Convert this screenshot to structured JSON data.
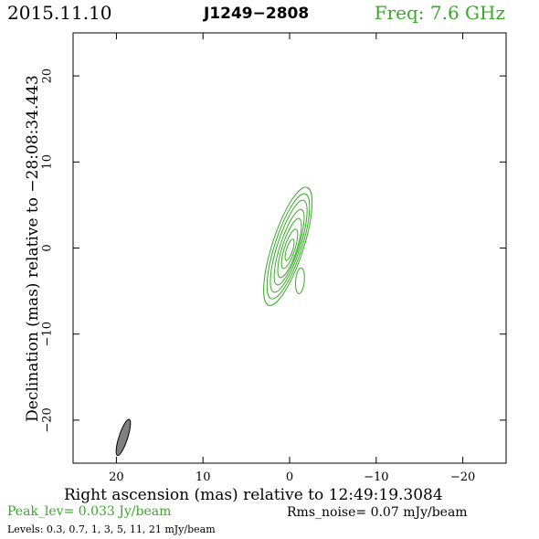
{
  "header": {
    "date": "2015.11.10",
    "source": "J1249−2808",
    "frequency": "Freq: 7.6 GHz"
  },
  "footer": {
    "peak": "Peak_lev=  0.033 Jy/beam",
    "rms": "Rms_noise= 0.07 mJy/beam",
    "levels": "Levels: 0.3, 0.7,    1,    3,    5,   11,   21 mJy/beam"
  },
  "chart_data": {
    "type": "contour",
    "title": "J1249−2808",
    "xlabel": "Right ascension (mas) relative to 12:49:19.3084",
    "ylabel": "Declination (mas) relative to −28:08:34.443",
    "xlim": [
      25,
      -25
    ],
    "ylim": [
      -25,
      25
    ],
    "xticks": [
      20,
      10,
      0,
      -10,
      -20
    ],
    "xtick_labels": [
      "20",
      "10",
      "0",
      "−10",
      "−20"
    ],
    "yticks": [
      -20,
      -10,
      0,
      10,
      20
    ],
    "ytick_labels": [
      "−20",
      "−10",
      "0",
      "10",
      "20"
    ],
    "contour_color": "#3aa82a",
    "beam_color": "#808080",
    "contour_levels_mJy": [
      0.3,
      0.7,
      1,
      3,
      5,
      11,
      21
    ],
    "contours": [
      {
        "level": 0.3,
        "cx": 0.2,
        "cy": 0.2,
        "a": 7.2,
        "b": 1.8,
        "pa": 18
      },
      {
        "level": 0.7,
        "cx": 0.15,
        "cy": 0.2,
        "a": 6.4,
        "b": 1.55,
        "pa": 18
      },
      {
        "level": 1,
        "cx": 0.1,
        "cy": 0.2,
        "a": 5.6,
        "b": 1.3,
        "pa": 18
      },
      {
        "level": 3,
        "cx": 0.05,
        "cy": 0.1,
        "a": 4.6,
        "b": 1.05,
        "pa": 18
      },
      {
        "level": 5,
        "cx": 0.0,
        "cy": 0.0,
        "a": 3.6,
        "b": 0.85,
        "pa": 18
      },
      {
        "level": 11,
        "cx": 0.0,
        "cy": -0.1,
        "a": 2.4,
        "b": 0.6,
        "pa": 18
      },
      {
        "level": 21,
        "cx": 0.0,
        "cy": -0.2,
        "a": 1.3,
        "b": 0.35,
        "pa": 18
      },
      {
        "level": 0.3,
        "cx": -1.2,
        "cy": -3.8,
        "a": 1.5,
        "b": 0.5,
        "pa": 5
      }
    ],
    "beam": {
      "cx": 19.2,
      "cy": -22.0,
      "a": 2.2,
      "b": 0.5,
      "pa": 18
    }
  }
}
